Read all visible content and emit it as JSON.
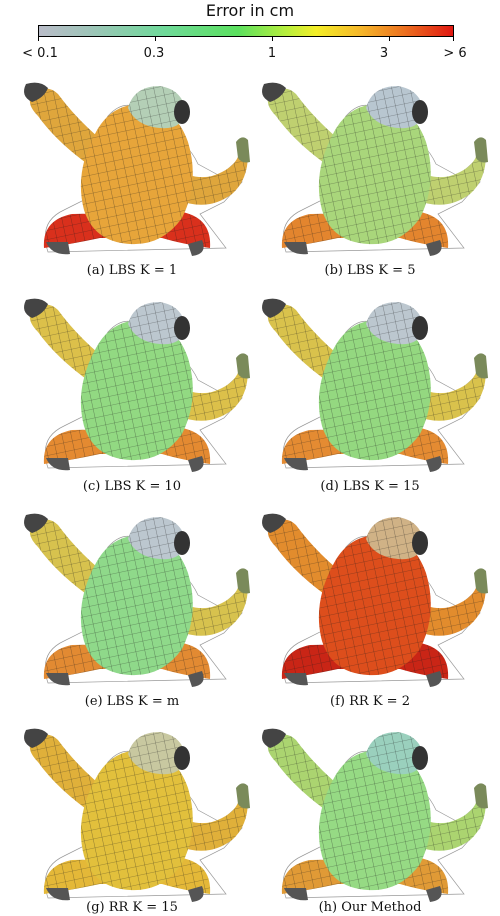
{
  "colorbar": {
    "title": "Error in cm",
    "ticks": [
      "< 0.1",
      "0.3",
      "1",
      "3",
      "> 6"
    ]
  },
  "panels": [
    {
      "caption": "(a) LBS K = 1",
      "body_color": "#e7a53a",
      "leg_color": "#d9301c",
      "arm_color": "#dfa63c",
      "head_color": "#b4cfb6"
    },
    {
      "caption": "(b) LBS K = 5",
      "body_color": "#a9d67b",
      "leg_color": "#e3852e",
      "arm_color": "#bfd070",
      "head_color": "#b8c6d0"
    },
    {
      "caption": "(c) LBS K = 10",
      "body_color": "#92d982",
      "leg_color": "#e48a31",
      "arm_color": "#dcc04a",
      "head_color": "#bcc7cf"
    },
    {
      "caption": "(d) LBS K = 15",
      "body_color": "#94d880",
      "leg_color": "#e48b32",
      "arm_color": "#d9c24c",
      "head_color": "#bcc7cf"
    },
    {
      "caption": "(e) LBS K = m",
      "body_color": "#8fd98a",
      "leg_color": "#e28a32",
      "arm_color": "#d7c24e",
      "head_color": "#bcc7cf"
    },
    {
      "caption": "(f) RR K = 2",
      "body_color": "#dd4e1c",
      "leg_color": "#c92516",
      "arm_color": "#e28c2d",
      "head_color": "#d0b286"
    },
    {
      "caption": "(g) RR K = 15",
      "body_color": "#e2c03c",
      "leg_color": "#e4b838",
      "arm_color": "#e0b03a",
      "head_color": "#c8c8a0"
    },
    {
      "caption": "(h) Our Method",
      "body_color": "#96da84",
      "leg_color": "#e09a36",
      "arm_color": "#abd470",
      "head_color": "#9ad0bd"
    }
  ]
}
